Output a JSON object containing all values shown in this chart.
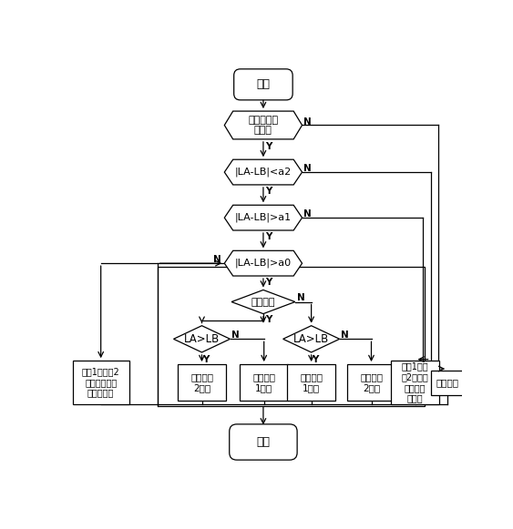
{
  "bg_color": "#ffffff",
  "start_text": "开始",
  "end_text": "结束",
  "d1_text": "是否选择卷\n扬同步",
  "d2_text": "|LA-LB|<a2",
  "d3_text": "|LA-LB|>a1",
  "d4_text": "|LA-LB|>a0",
  "d5_text": "卷扬起升",
  "d6_text": "LA>LB",
  "d7_text": "LA>LB",
  "b1_text": "卷扬1与卷扬2\n由各自控制手\n柄控制转速",
  "b2_text": "减小卷扬\n2转速",
  "b3_text": "减小卷扬\n1转速",
  "b4_text": "减小卷扬\n1转速",
  "b5_text": "减小卷扬\n2转速",
  "b6_text": "卷扬1与卷\n扬2以相同\n转速起升\n或下降",
  "b7_text": "程序报警"
}
